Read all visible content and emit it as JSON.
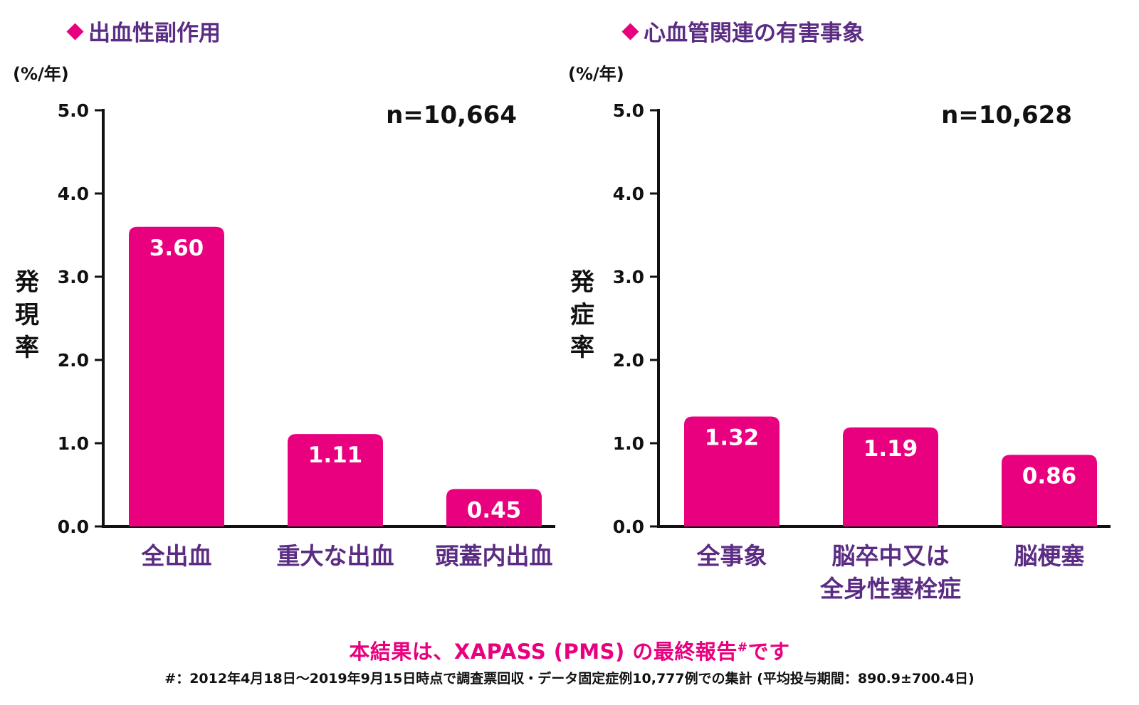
{
  "chart_data": [
    {
      "type": "bar",
      "title": "出血性副作用",
      "unit": "(%/年)",
      "ylabel": "発現率",
      "n_label": "n=10,664",
      "yticks": [
        "5.0",
        "4.0",
        "3.0",
        "2.0",
        "1.0",
        "0.0"
      ],
      "ylim": [
        0,
        5
      ],
      "categories": [
        [
          "全出血"
        ],
        [
          "重大な出血"
        ],
        [
          "頭蓋内出血"
        ]
      ],
      "values": [
        3.6,
        1.11,
        0.45
      ],
      "value_labels": [
        "3.60",
        "1.11",
        "0.45"
      ],
      "bar_color": "#e8007e"
    },
    {
      "type": "bar",
      "title": "心血管関連の有害事象",
      "unit": "(%/年)",
      "ylabel": "発症率",
      "n_label": "n=10,628",
      "yticks": [
        "5.0",
        "4.0",
        "3.0",
        "2.0",
        "1.0",
        "0.0"
      ],
      "ylim": [
        0,
        5
      ],
      "categories": [
        [
          "全事象"
        ],
        [
          "脳卒中又は",
          "全身性塞栓症"
        ],
        [
          "脳梗塞"
        ]
      ],
      "values": [
        1.32,
        1.19,
        0.86
      ],
      "value_labels": [
        "1.32",
        "1.19",
        "0.86"
      ],
      "bar_color": "#e8007e"
    }
  ],
  "colors": {
    "accent": "#e8007e",
    "category_text": "#5b2c83",
    "axis": "#111111"
  },
  "footer": {
    "main": "本結果は、XAPASS (PMS) の最終報告",
    "main_mark": "#",
    "main_suffix": "です",
    "note": "#：2012年4月18日～2019年9月15日時点で調査票回収・データ固定症例10,777例での集計 (平均投与期間：890.9±700.4日)"
  }
}
